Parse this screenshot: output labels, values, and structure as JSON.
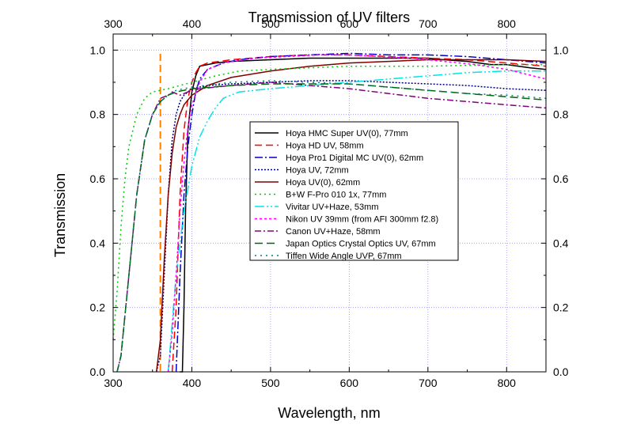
{
  "chart_data": {
    "type": "line",
    "title": "Transmission of UV filters",
    "xlabel": "Wavelength, nm",
    "ylabel": "Transmission",
    "xlim": [
      300,
      850
    ],
    "ylim": [
      0,
      1.05
    ],
    "x_ticks": [
      300,
      400,
      500,
      600,
      700,
      800
    ],
    "y_ticks": [
      0.0,
      0.2,
      0.4,
      0.6,
      0.8,
      1.0
    ],
    "x_tick_labels": [
      "300",
      "400",
      "500",
      "600",
      "700",
      "800"
    ],
    "y_tick_labels": [
      "0.0",
      "0.2",
      "0.4",
      "0.6",
      "0.8",
      "1.0"
    ],
    "grid": true,
    "legend_position": "center",
    "reference_line": {
      "x": 360,
      "color": "#ff8000",
      "style": "dashed"
    },
    "series": [
      {
        "name": "Hoya HMC Super UV(0), 77mm",
        "color": "#000000",
        "dash": "solid",
        "points": [
          [
            385,
            0
          ],
          [
            388,
            0
          ],
          [
            390,
            0.2
          ],
          [
            392,
            0.5
          ],
          [
            395,
            0.75
          ],
          [
            400,
            0.87
          ],
          [
            405,
            0.92
          ],
          [
            410,
            0.95
          ],
          [
            430,
            0.96
          ],
          [
            450,
            0.965
          ],
          [
            500,
            0.97
          ],
          [
            550,
            0.975
          ],
          [
            600,
            0.975
          ],
          [
            650,
            0.975
          ],
          [
            700,
            0.975
          ],
          [
            720,
            0.97
          ],
          [
            750,
            0.965
          ],
          [
            780,
            0.955
          ],
          [
            800,
            0.955
          ],
          [
            830,
            0.945
          ],
          [
            850,
            0.94
          ]
        ]
      },
      {
        "name": "Hoya HD UV, 58mm",
        "color": "#ff0000",
        "dash": "9,5",
        "points": [
          [
            375,
            0
          ],
          [
            380,
            0.2
          ],
          [
            385,
            0.55
          ],
          [
            390,
            0.75
          ],
          [
            395,
            0.85
          ],
          [
            400,
            0.9
          ],
          [
            405,
            0.93
          ],
          [
            410,
            0.95
          ],
          [
            420,
            0.96
          ],
          [
            450,
            0.97
          ],
          [
            500,
            0.98
          ],
          [
            550,
            0.985
          ],
          [
            600,
            0.985
          ],
          [
            650,
            0.98
          ],
          [
            700,
            0.975
          ],
          [
            750,
            0.97
          ],
          [
            800,
            0.96
          ],
          [
            850,
            0.95
          ]
        ]
      },
      {
        "name": "Hoya Pro1 Digital MC UV(0), 62mm",
        "color": "#0000cc",
        "dash": "10,3,2,3",
        "points": [
          [
            380,
            0
          ],
          [
            385,
            0.3
          ],
          [
            390,
            0.55
          ],
          [
            395,
            0.7
          ],
          [
            400,
            0.8
          ],
          [
            405,
            0.87
          ],
          [
            410,
            0.91
          ],
          [
            420,
            0.94
          ],
          [
            440,
            0.96
          ],
          [
            460,
            0.97
          ],
          [
            500,
            0.98
          ],
          [
            550,
            0.985
          ],
          [
            600,
            0.99
          ],
          [
            650,
            0.985
          ],
          [
            700,
            0.985
          ],
          [
            750,
            0.98
          ],
          [
            800,
            0.97
          ],
          [
            850,
            0.96
          ]
        ]
      },
      {
        "name": "Hoya UV, 72mm",
        "color": "#000080",
        "dash": "2,2",
        "points": [
          [
            355,
            0
          ],
          [
            360,
            0.05
          ],
          [
            365,
            0.3
          ],
          [
            370,
            0.55
          ],
          [
            375,
            0.72
          ],
          [
            380,
            0.8
          ],
          [
            385,
            0.84
          ],
          [
            390,
            0.86
          ],
          [
            400,
            0.88
          ],
          [
            420,
            0.89
          ],
          [
            450,
            0.895
          ],
          [
            500,
            0.9
          ],
          [
            550,
            0.905
          ],
          [
            600,
            0.905
          ],
          [
            650,
            0.9
          ],
          [
            700,
            0.895
          ],
          [
            750,
            0.89
          ],
          [
            800,
            0.88
          ],
          [
            850,
            0.875
          ]
        ]
      },
      {
        "name": "Hoya UV(0), 62mm",
        "color": "#800000",
        "dash": "solid",
        "points": [
          [
            355,
            0
          ],
          [
            360,
            0.1
          ],
          [
            365,
            0.35
          ],
          [
            370,
            0.55
          ],
          [
            375,
            0.68
          ],
          [
            380,
            0.76
          ],
          [
            385,
            0.8
          ],
          [
            390,
            0.83
          ],
          [
            400,
            0.86
          ],
          [
            420,
            0.89
          ],
          [
            450,
            0.915
          ],
          [
            500,
            0.935
          ],
          [
            550,
            0.95
          ],
          [
            600,
            0.96
          ],
          [
            650,
            0.965
          ],
          [
            700,
            0.97
          ],
          [
            750,
            0.97
          ],
          [
            800,
            0.97
          ],
          [
            850,
            0.965
          ]
        ]
      },
      {
        "name": "B+W F-Pro 010 1x, 77mm",
        "color": "#00cc00",
        "dash": "2,4",
        "points": [
          [
            300,
            0.1
          ],
          [
            305,
            0.25
          ],
          [
            310,
            0.45
          ],
          [
            315,
            0.6
          ],
          [
            320,
            0.7
          ],
          [
            330,
            0.8
          ],
          [
            340,
            0.85
          ],
          [
            350,
            0.87
          ],
          [
            370,
            0.88
          ],
          [
            400,
            0.9
          ],
          [
            430,
            0.92
          ],
          [
            460,
            0.935
          ],
          [
            500,
            0.94
          ],
          [
            600,
            0.95
          ],
          [
            700,
            0.95
          ],
          [
            800,
            0.955
          ],
          [
            850,
            0.955
          ]
        ]
      },
      {
        "name": "Vivitar UV+Haze, 53mm",
        "color": "#00e5e5",
        "dash": "12,3,2,3,2,3",
        "points": [
          [
            370,
            0
          ],
          [
            375,
            0.15
          ],
          [
            380,
            0.3
          ],
          [
            390,
            0.5
          ],
          [
            400,
            0.64
          ],
          [
            410,
            0.73
          ],
          [
            420,
            0.78
          ],
          [
            430,
            0.82
          ],
          [
            440,
            0.85
          ],
          [
            460,
            0.87
          ],
          [
            500,
            0.88
          ],
          [
            550,
            0.89
          ],
          [
            600,
            0.9
          ],
          [
            650,
            0.91
          ],
          [
            700,
            0.92
          ],
          [
            750,
            0.93
          ],
          [
            800,
            0.935
          ],
          [
            850,
            0.935
          ]
        ]
      },
      {
        "name": "Nikon UV 39mm (from AFI 300mm f2.8)",
        "color": "#ff00ff",
        "dash": "3,3",
        "points": [
          [
            370,
            0
          ],
          [
            375,
            0.12
          ],
          [
            380,
            0.3
          ],
          [
            385,
            0.5
          ],
          [
            390,
            0.65
          ],
          [
            395,
            0.76
          ],
          [
            400,
            0.83
          ],
          [
            410,
            0.9
          ],
          [
            420,
            0.94
          ],
          [
            440,
            0.96
          ],
          [
            480,
            0.975
          ],
          [
            520,
            0.98
          ],
          [
            560,
            0.985
          ],
          [
            600,
            0.985
          ],
          [
            640,
            0.98
          ],
          [
            680,
            0.975
          ],
          [
            720,
            0.965
          ],
          [
            760,
            0.955
          ],
          [
            800,
            0.94
          ],
          [
            850,
            0.91
          ]
        ]
      },
      {
        "name": "Canon UV+Haze, 58mm",
        "color": "#800080",
        "dash": "8,3,2,3",
        "points": [
          [
            305,
            0
          ],
          [
            310,
            0.05
          ],
          [
            320,
            0.3
          ],
          [
            330,
            0.55
          ],
          [
            340,
            0.72
          ],
          [
            350,
            0.8
          ],
          [
            360,
            0.85
          ],
          [
            370,
            0.86
          ],
          [
            375,
            0.87
          ],
          [
            385,
            0.86
          ],
          [
            395,
            0.87
          ],
          [
            410,
            0.88
          ],
          [
            450,
            0.89
          ],
          [
            500,
            0.9
          ],
          [
            550,
            0.89
          ],
          [
            600,
            0.88
          ],
          [
            650,
            0.865
          ],
          [
            700,
            0.85
          ],
          [
            750,
            0.84
          ],
          [
            800,
            0.83
          ],
          [
            850,
            0.82
          ]
        ]
      },
      {
        "name": "Japan Optics Crystal Optics UV, 67mm",
        "color": "#006600",
        "dash": "10,5",
        "points": [
          [
            305,
            0
          ],
          [
            310,
            0.05
          ],
          [
            320,
            0.3
          ],
          [
            330,
            0.55
          ],
          [
            340,
            0.72
          ],
          [
            350,
            0.8
          ],
          [
            360,
            0.84
          ],
          [
            370,
            0.86
          ],
          [
            380,
            0.87
          ],
          [
            400,
            0.88
          ],
          [
            450,
            0.89
          ],
          [
            500,
            0.895
          ],
          [
            550,
            0.895
          ],
          [
            600,
            0.895
          ],
          [
            650,
            0.885
          ],
          [
            700,
            0.875
          ],
          [
            750,
            0.865
          ],
          [
            800,
            0.855
          ],
          [
            850,
            0.845
          ]
        ]
      },
      {
        "name": "Tiffen Wide Angle UVP, 67mm",
        "color": "#008080",
        "dash": "2,5",
        "points": [
          [
            305,
            0
          ],
          [
            310,
            0.05
          ],
          [
            320,
            0.3
          ],
          [
            330,
            0.55
          ],
          [
            340,
            0.72
          ],
          [
            350,
            0.8
          ],
          [
            360,
            0.84
          ],
          [
            370,
            0.86
          ],
          [
            380,
            0.875
          ],
          [
            400,
            0.885
          ],
          [
            450,
            0.9
          ],
          [
            500,
            0.905
          ],
          [
            550,
            0.9
          ],
          [
            600,
            0.895
          ],
          [
            650,
            0.885
          ],
          [
            700,
            0.875
          ],
          [
            750,
            0.865
          ],
          [
            800,
            0.86
          ],
          [
            850,
            0.85
          ]
        ]
      }
    ]
  }
}
